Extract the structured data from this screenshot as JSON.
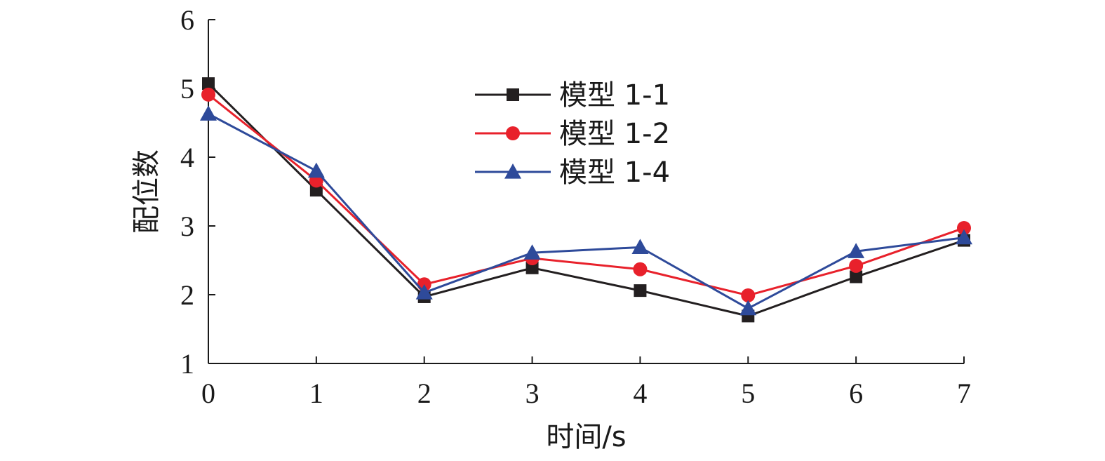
{
  "chart_data": {
    "type": "line",
    "xlabel": "时间/s",
    "ylabel": "配位数",
    "x": [
      0,
      1,
      2,
      3,
      4,
      5,
      6,
      7
    ],
    "xlim": [
      0,
      7
    ],
    "ylim": [
      1,
      6
    ],
    "xticks": [
      "0",
      "1",
      "2",
      "3",
      "4",
      "5",
      "6",
      "7"
    ],
    "yticks": [
      "1",
      "2",
      "3",
      "4",
      "5",
      "6"
    ],
    "grid": false,
    "legend_position": "top-center",
    "series": [
      {
        "name": "模型 1-1",
        "color": "#231f20",
        "marker": "square",
        "values": [
          5.07,
          3.52,
          1.97,
          2.39,
          2.06,
          1.69,
          2.26,
          2.79
        ]
      },
      {
        "name": "模型 1-2",
        "color": "#e8212b",
        "marker": "circle",
        "values": [
          4.91,
          3.66,
          2.15,
          2.53,
          2.37,
          1.99,
          2.42,
          2.97
        ]
      },
      {
        "name": "模型 1-4",
        "color": "#2e4a9a",
        "marker": "triangle",
        "values": [
          4.63,
          3.8,
          2.03,
          2.61,
          2.69,
          1.8,
          2.63,
          2.83
        ]
      }
    ]
  }
}
